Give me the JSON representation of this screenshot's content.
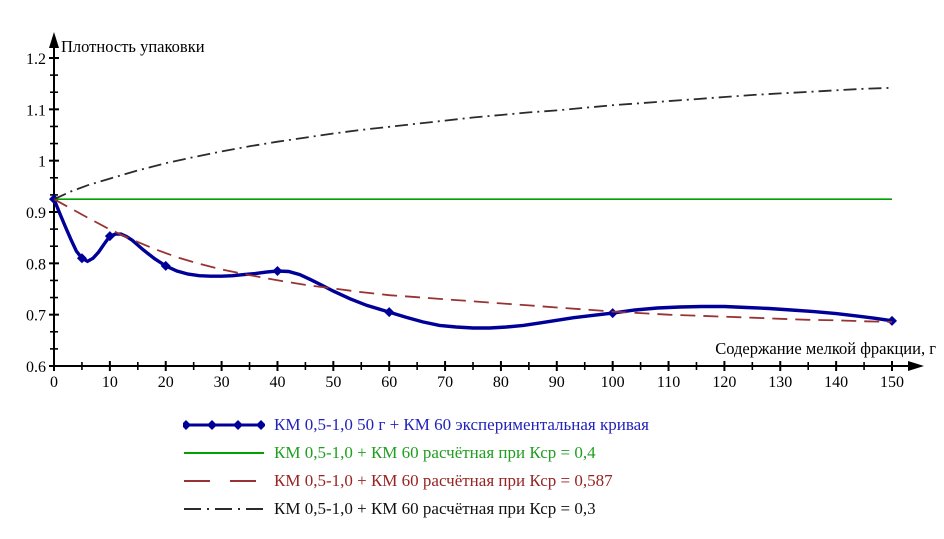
{
  "chart_data": {
    "type": "line",
    "title": "",
    "ylabel": "Плотность упаковки",
    "xlabel": "Содержание мелкой фракции, г",
    "xlim": [
      0,
      150
    ],
    "ylim": [
      0.6,
      1.2
    ],
    "grid": false,
    "legend_position": "bottom-center",
    "x_major_ticks": [
      0,
      10,
      20,
      30,
      40,
      50,
      60,
      70,
      80,
      90,
      100,
      110,
      120,
      130,
      140,
      150
    ],
    "x_tick_labels": [
      "0",
      "10",
      "20",
      "30",
      "40",
      "50",
      "60",
      "70",
      "80",
      "90",
      "100",
      "110",
      "120",
      "130",
      "140",
      "150"
    ],
    "x_minor_ticks": [
      5,
      15,
      25,
      35,
      45,
      55,
      65,
      75,
      85,
      95,
      105,
      115,
      125,
      135,
      145
    ],
    "y_major_ticks": [
      0.6,
      0.7,
      0.8,
      0.9,
      1.0,
      1.1,
      1.2
    ],
    "y_tick_labels": [
      "0.6",
      "0.7",
      "0.8",
      "0.9",
      "1",
      "1.1",
      "1.2"
    ],
    "y_minor_step": 0.0333,
    "axis_color": "#000000",
    "series": [
      {
        "name": "КМ 0,5-1,0 50 г + КМ 60 экспериментальная кривая",
        "dash": "solid",
        "color": "#000099",
        "text_color": "#2222BB",
        "width": 3.4,
        "marker": "diamond",
        "marker_points": [
          [
            0,
            0.925
          ],
          [
            5,
            0.81
          ],
          [
            10,
            0.853
          ],
          [
            20,
            0.795
          ],
          [
            40,
            0.785
          ],
          [
            60,
            0.705
          ],
          [
            100,
            0.703
          ],
          [
            150,
            0.688
          ]
        ],
        "points": [
          [
            0,
            0.925
          ],
          [
            1,
            0.898
          ],
          [
            2,
            0.872
          ],
          [
            3,
            0.847
          ],
          [
            4,
            0.824
          ],
          [
            5,
            0.81
          ],
          [
            6,
            0.804
          ],
          [
            7,
            0.81
          ],
          [
            8,
            0.822
          ],
          [
            9,
            0.838
          ],
          [
            10,
            0.853
          ],
          [
            11,
            0.857
          ],
          [
            12,
            0.857
          ],
          [
            13,
            0.852
          ],
          [
            14,
            0.845
          ],
          [
            16,
            0.826
          ],
          [
            18,
            0.809
          ],
          [
            20,
            0.795
          ],
          [
            22,
            0.785
          ],
          [
            24,
            0.779
          ],
          [
            26,
            0.776
          ],
          [
            28,
            0.775
          ],
          [
            30,
            0.775
          ],
          [
            32,
            0.776
          ],
          [
            34,
            0.778
          ],
          [
            36,
            0.78
          ],
          [
            38,
            0.783
          ],
          [
            40,
            0.785
          ],
          [
            42,
            0.784
          ],
          [
            44,
            0.778
          ],
          [
            46,
            0.768
          ],
          [
            48,
            0.757
          ],
          [
            50,
            0.746
          ],
          [
            53,
            0.731
          ],
          [
            56,
            0.718
          ],
          [
            60,
            0.705
          ],
          [
            63,
            0.695
          ],
          [
            66,
            0.686
          ],
          [
            69,
            0.679
          ],
          [
            72,
            0.676
          ],
          [
            75,
            0.674
          ],
          [
            78,
            0.674
          ],
          [
            81,
            0.676
          ],
          [
            84,
            0.679
          ],
          [
            87,
            0.684
          ],
          [
            90,
            0.689
          ],
          [
            93,
            0.694
          ],
          [
            96,
            0.698
          ],
          [
            100,
            0.703
          ],
          [
            104,
            0.709
          ],
          [
            108,
            0.713
          ],
          [
            112,
            0.715
          ],
          [
            116,
            0.716
          ],
          [
            120,
            0.716
          ],
          [
            124,
            0.714
          ],
          [
            128,
            0.712
          ],
          [
            132,
            0.709
          ],
          [
            136,
            0.706
          ],
          [
            140,
            0.702
          ],
          [
            144,
            0.697
          ],
          [
            147,
            0.693
          ],
          [
            150,
            0.688
          ]
        ]
      },
      {
        "name": "КМ 0,5-1,0 + КМ 60 расчётная при Кср = 0,4",
        "dash": "solid",
        "color": "#00A000",
        "text_color": "#1F9E1F",
        "width": 1.6,
        "marker": "none",
        "points": [
          [
            0,
            0.925
          ],
          [
            150,
            0.925
          ]
        ]
      },
      {
        "name": "КМ 0,5-1,0 + КМ 60 расчётная при Кср = 0,587",
        "dash": "dashed",
        "color": "#993333",
        "text_color": "#992222",
        "width": 1.8,
        "marker": "none",
        "points": [
          [
            0,
            0.925
          ],
          [
            3,
            0.907
          ],
          [
            6,
            0.889
          ],
          [
            10,
            0.866
          ],
          [
            14,
            0.846
          ],
          [
            18,
            0.828
          ],
          [
            22,
            0.812
          ],
          [
            26,
            0.799
          ],
          [
            30,
            0.788
          ],
          [
            35,
            0.777
          ],
          [
            40,
            0.767
          ],
          [
            45,
            0.758
          ],
          [
            50,
            0.751
          ],
          [
            55,
            0.744
          ],
          [
            60,
            0.738
          ],
          [
            65,
            0.734
          ],
          [
            70,
            0.73
          ],
          [
            75,
            0.726
          ],
          [
            80,
            0.722
          ],
          [
            85,
            0.718
          ],
          [
            90,
            0.714
          ],
          [
            95,
            0.71
          ],
          [
            100,
            0.706
          ],
          [
            105,
            0.703
          ],
          [
            110,
            0.7
          ],
          [
            115,
            0.698
          ],
          [
            120,
            0.696
          ],
          [
            125,
            0.694
          ],
          [
            130,
            0.692
          ],
          [
            135,
            0.69
          ],
          [
            140,
            0.689
          ],
          [
            145,
            0.687
          ],
          [
            150,
            0.686
          ]
        ]
      },
      {
        "name": "КМ 0,5-1,0 + КМ 60 расчётная при Кср = 0,3",
        "dash": "dashdot",
        "color": "#2B2B2B",
        "text_color": "#111111",
        "width": 1.8,
        "marker": "none",
        "points": [
          [
            0,
            0.925
          ],
          [
            3,
            0.94
          ],
          [
            6,
            0.952
          ],
          [
            10,
            0.965
          ],
          [
            15,
            0.981
          ],
          [
            20,
            0.995
          ],
          [
            25,
            1.007
          ],
          [
            30,
            1.018
          ],
          [
            35,
            1.028
          ],
          [
            40,
            1.037
          ],
          [
            45,
            1.045
          ],
          [
            50,
            1.053
          ],
          [
            55,
            1.06
          ],
          [
            60,
            1.066
          ],
          [
            65,
            1.072
          ],
          [
            70,
            1.078
          ],
          [
            75,
            1.084
          ],
          [
            80,
            1.089
          ],
          [
            85,
            1.094
          ],
          [
            90,
            1.098
          ],
          [
            95,
            1.103
          ],
          [
            100,
            1.108
          ],
          [
            105,
            1.112
          ],
          [
            110,
            1.116
          ],
          [
            115,
            1.12
          ],
          [
            120,
            1.124
          ],
          [
            125,
            1.128
          ],
          [
            130,
            1.131
          ],
          [
            135,
            1.134
          ],
          [
            140,
            1.137
          ],
          [
            145,
            1.14
          ],
          [
            150,
            1.142
          ]
        ]
      }
    ]
  }
}
